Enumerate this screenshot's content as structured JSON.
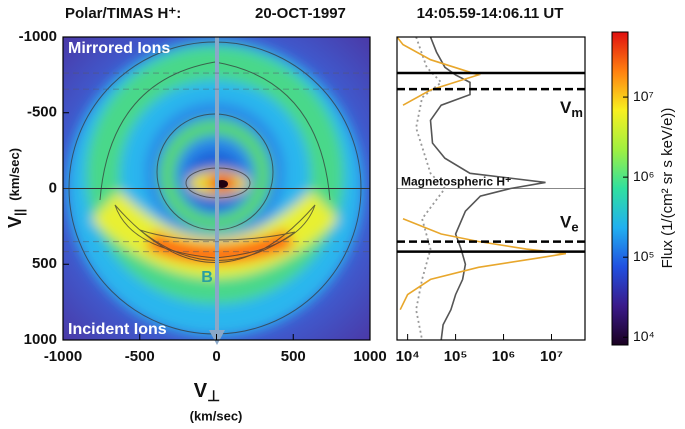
{
  "chart_data": [
    {
      "type": "heatmap",
      "title": "Polar/TIMAS H⁺:",
      "subtitle": "20-OCT-1997",
      "annotations": [
        "Mirrored Ions",
        "Incident Ions"
      ],
      "field_label": "B",
      "x_label": "V",
      "x_label_sub": "⊥",
      "x_unit": "(km/sec)",
      "y_label": "V",
      "y_label_sub": "||",
      "y_unit": "(km/sec)",
      "xlim": [
        -1000,
        1000
      ],
      "xticks": [
        -1000,
        -500,
        0,
        500,
        1000
      ],
      "ylim": [
        -1000,
        1000
      ],
      "yticks": [
        -1000,
        -500,
        0,
        500,
        1000
      ],
      "y_inverted": true
    },
    {
      "type": "line",
      "title": "14:05.59-14:06.11 UT",
      "log_x": true,
      "xlim": [
        6000,
        50000000
      ],
      "xticks": [
        {
          "value": 10000,
          "label": "10⁴"
        },
        {
          "value": 100000,
          "label": "10⁵"
        },
        {
          "value": 1000000,
          "label": "10⁶"
        },
        {
          "value": 10000000,
          "label": "10⁷"
        }
      ],
      "ylim": [
        -1000,
        1000
      ],
      "y_inverted": true,
      "zero_line": 0,
      "series": [
        {
          "color": "#555555",
          "dash": "solid",
          "y": [
            -1000,
            -900,
            -800,
            -750,
            -700,
            -620,
            -550,
            -450,
            -300,
            -200,
            -100,
            -40,
            0,
            50,
            150,
            300,
            400,
            500,
            600,
            700,
            800,
            900,
            1000
          ],
          "values": [
            30000,
            40000,
            60000,
            100000,
            200000,
            200000,
            50000,
            30000,
            33000,
            60000,
            200000,
            7500000,
            1400000,
            330000,
            160000,
            100000,
            130000,
            160000,
            140000,
            100000,
            80000,
            55000,
            50000
          ]
        },
        {
          "color": "#999999",
          "dash": "dotted",
          "y": [
            -1000,
            -800,
            -700,
            -600,
            -400,
            -100,
            0,
            200,
            400,
            600,
            800,
            1000
          ],
          "values": [
            15000,
            25000,
            50000,
            20000,
            15000,
            30000,
            60000,
            20000,
            30000,
            20000,
            15000,
            20000
          ]
        },
        {
          "color": "#e8a72c",
          "dash": "solid",
          "y": [
            -1000,
            -950,
            -850,
            -780,
            -750,
            -720,
            -650,
            -550
          ],
          "values": [
            6000,
            8000,
            30000,
            150000,
            300000,
            150000,
            30000,
            8000
          ]
        },
        {
          "color": "#e8a72c",
          "dash": "solid",
          "y": [
            200,
            300,
            350,
            400,
            430,
            460,
            520,
            600,
            700,
            800
          ],
          "values": [
            8000,
            50000,
            300000,
            3000000,
            20000000,
            5000000,
            300000,
            30000,
            10000,
            7000
          ]
        }
      ],
      "hlines": [
        {
          "value": -762,
          "dash": "solid"
        },
        {
          "value": -656,
          "dash": "dashed"
        },
        {
          "value": 351,
          "dash": "dashed"
        },
        {
          "value": 417,
          "dash": "solid"
        }
      ],
      "hline_labels": [
        {
          "text": "V",
          "sub": "m"
        },
        {
          "text": "V",
          "sub": "e"
        }
      ],
      "annotation": "Magnetospheric H⁺"
    },
    {
      "type": "colorbar",
      "label": "Flux (1/(cm² sr s keV/e))",
      "log": true,
      "clim": [
        8000,
        65000000
      ],
      "ticks": [
        {
          "value": 10000,
          "label": "10⁴"
        },
        {
          "value": 100000,
          "label": "10⁵"
        },
        {
          "value": 1000000,
          "label": "10⁶"
        },
        {
          "value": 10000000,
          "label": "10⁷"
        }
      ],
      "colors": [
        "#1a0020",
        "#3a1a8a",
        "#2050e0",
        "#20b0f0",
        "#30e0a0",
        "#a0f040",
        "#f8f020",
        "#ff8010",
        "#e01010"
      ]
    }
  ]
}
